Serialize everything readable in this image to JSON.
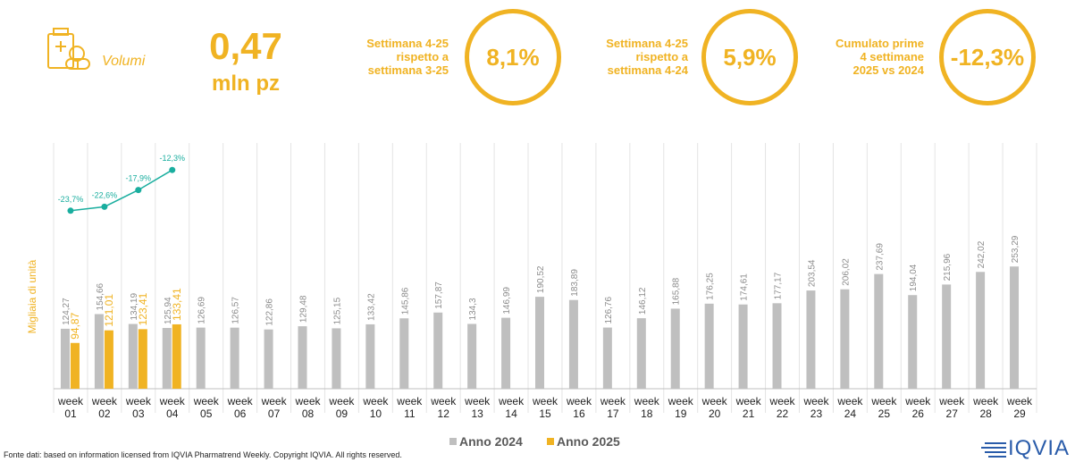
{
  "header": {
    "label": "Volumi",
    "value": "0,47",
    "unit": "mln pz",
    "kpis": [
      {
        "lines": [
          "Settimana 4-25",
          "rispetto a",
          "settimana 3-25"
        ],
        "value": "8,1%"
      },
      {
        "lines": [
          "Settimana 4-25",
          "rispetto a",
          "settimana 4-24"
        ],
        "value": "5,9%"
      },
      {
        "lines": [
          "Cumulato prime",
          "4 settimane",
          "2025 vs 2024"
        ],
        "value": "-12,3%"
      }
    ]
  },
  "chart_data": {
    "type": "bar",
    "axis_label": "Migliaia di unità",
    "categories": [
      "week 01",
      "week 02",
      "week 03",
      "week 04",
      "week 05",
      "week 06",
      "week 07",
      "week 08",
      "week 09",
      "week 10",
      "week 11",
      "week 12",
      "week 13",
      "week 14",
      "week 15",
      "week 16",
      "week 17",
      "week 18",
      "week 19",
      "week 20",
      "week 21",
      "week 22",
      "week 23",
      "week 24",
      "week 25",
      "week 26",
      "week 27",
      "week 28",
      "week 29"
    ],
    "ylim": [
      0,
      300
    ],
    "y2lim": [
      -30,
      -10
    ],
    "series": [
      {
        "name": "Anno 2024",
        "color": "#bfbfbf",
        "values": [
          124.27,
          154.66,
          134.19,
          125.94,
          126.69,
          126.57,
          122.86,
          129.48,
          125.15,
          133.42,
          145.86,
          157.87,
          134.3,
          146.99,
          190.52,
          183.89,
          126.76,
          146.12,
          165.88,
          176.25,
          174.61,
          177.17,
          203.54,
          206.02,
          237.69,
          194.04,
          215.96,
          242.02,
          253.29
        ],
        "value_labels": [
          "124,27",
          "154,66",
          "134,19",
          "125,94",
          "126,69",
          "126,57",
          "122,86",
          "129,48",
          "125,15",
          "133,42",
          "145,86",
          "157,87",
          "134,3",
          "146,99",
          "190,52",
          "183,89",
          "126,76",
          "146,12",
          "165,88",
          "176,25",
          "174,61",
          "177,17",
          "203,54",
          "206,02",
          "237,69",
          "194,04",
          "215,96",
          "242,02",
          "253,29"
        ]
      },
      {
        "name": "Anno 2025",
        "color": "#f0b323",
        "values": [
          94.87,
          121.01,
          123.41,
          133.41,
          null,
          null,
          null,
          null,
          null,
          null,
          null,
          null,
          null,
          null,
          null,
          null,
          null,
          null,
          null,
          null,
          null,
          null,
          null,
          null,
          null,
          null,
          null,
          null,
          null
        ],
        "value_labels": [
          "94,87",
          "121,01",
          "123,41",
          "133,41",
          null,
          null,
          null,
          null,
          null,
          null,
          null,
          null,
          null,
          null,
          null,
          null,
          null,
          null,
          null,
          null,
          null,
          null,
          null,
          null,
          null,
          null,
          null,
          null,
          null
        ]
      },
      {
        "type": "line",
        "axis": "y2",
        "color": "#1aae9f",
        "values": [
          -23.7,
          -22.6,
          -17.9,
          -12.3,
          null,
          null,
          null,
          null,
          null,
          null,
          null,
          null,
          null,
          null,
          null,
          null,
          null,
          null,
          null,
          null,
          null,
          null,
          null,
          null,
          null,
          null,
          null,
          null,
          null
        ],
        "value_labels": [
          "-23,7%",
          "-22,6%",
          "-17,9%",
          "-12,3%",
          null,
          null,
          null,
          null,
          null,
          null,
          null,
          null,
          null,
          null,
          null,
          null,
          null,
          null,
          null,
          null,
          null,
          null,
          null,
          null,
          null,
          null,
          null,
          null,
          null
        ]
      }
    ]
  },
  "footer": {
    "source": "Fonte dati: based on information licensed from IQVIA Pharmatrend Weekly. Copyright IQVIA. All rights reserved.",
    "logo": "IQVIA"
  }
}
